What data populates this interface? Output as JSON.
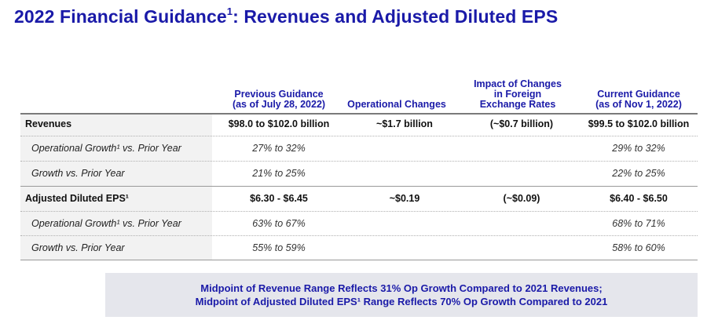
{
  "title": {
    "main": "2022 Financial Guidance",
    "sup": "1",
    "rest": ": Revenues and Adjusted Diluted EPS"
  },
  "headers": {
    "previous": [
      "Previous Guidance",
      "(as of July 28, 2022)"
    ],
    "operational": [
      "Operational Changes"
    ],
    "fx": [
      "Impact of Changes",
      "in Foreign",
      "Exchange Rates"
    ],
    "current": [
      "Current Guidance",
      "(as of Nov 1, 2022)"
    ]
  },
  "rows": [
    {
      "label": "Revenues",
      "previous": "$98.0 to $102.0 billion",
      "operational": "~$1.7 billion",
      "fx": "(~$0.7 billion)",
      "current": "$99.5 to $102.0 billion"
    },
    {
      "label": "Operational Growth¹ vs. Prior Year",
      "previous": "27% to 32%",
      "operational": "",
      "fx": "",
      "current": "29% to 32%"
    },
    {
      "label": "Growth vs. Prior Year",
      "previous": "21% to 25%",
      "operational": "",
      "fx": "",
      "current": "22% to 25%"
    },
    {
      "label": "Adjusted Diluted EPS¹",
      "previous": "$6.30 - $6.45",
      "operational": "~$0.19",
      "fx": "(~$0.09)",
      "current": "$6.40 - $6.50"
    },
    {
      "label": "Operational Growth¹ vs. Prior Year",
      "previous": "63% to 67%",
      "operational": "",
      "fx": "",
      "current": "68% to 71%"
    },
    {
      "label": "Growth vs. Prior Year",
      "previous": "55% to 59%",
      "operational": "",
      "fx": "",
      "current": "58% to 60%"
    }
  ],
  "banner": {
    "line1": "Midpoint of Revenue Range Reflects 31% Op Growth Compared to 2021 Revenues;",
    "line2": "Midpoint of Adjusted Diluted EPS¹ Range Reflects 70% Op Growth Compared to 2021"
  },
  "colors": {
    "title": "#1a1aa8",
    "banner_bg": "#e5e6ec",
    "label_shade": "#f2f2f2"
  }
}
